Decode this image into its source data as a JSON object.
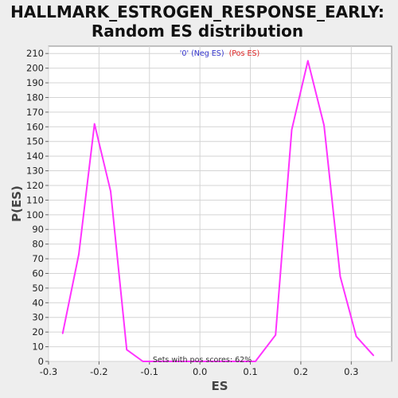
{
  "chart_data": {
    "type": "line",
    "title_line1": "HALLMARK_ESTROGEN_RESPONSE_EARLY:",
    "title_line2": "Random ES distribution",
    "xlabel": "ES",
    "ylabel": "P(ES)",
    "xlim": [
      -0.3,
      0.38
    ],
    "ylim": [
      0,
      215
    ],
    "xticks": [
      "-0.3",
      "-0.2",
      "-0.1",
      "0.0",
      "0.1",
      "0.2",
      "0.3"
    ],
    "xtick_values": [
      -0.3,
      -0.2,
      -0.1,
      0.0,
      0.1,
      0.2,
      0.3
    ],
    "yticks": [
      0,
      10,
      20,
      30,
      40,
      50,
      60,
      70,
      80,
      90,
      100,
      110,
      120,
      130,
      140,
      150,
      160,
      170,
      180,
      190,
      200,
      210
    ],
    "grid": true,
    "legend": {
      "neg_label": "'0' (Neg ES)",
      "pos_label": "(Pos ES)",
      "neg_color": "#3333cc",
      "pos_color": "#dd2222",
      "placement": "top-center"
    },
    "annotation": "Sets with pos scores: 62%",
    "series": [
      {
        "color": "#ff33ff",
        "x": [
          -0.272,
          -0.24,
          -0.209,
          -0.177,
          -0.145,
          -0.113,
          -0.082,
          -0.05,
          -0.018,
          0.014,
          0.046,
          0.078,
          0.11,
          0.15,
          0.182,
          0.214,
          0.246,
          0.278,
          0.31,
          0.344
        ],
        "values": [
          19,
          73,
          162,
          116,
          8,
          0,
          0,
          0,
          0,
          0,
          0,
          0,
          0,
          18,
          158,
          205,
          161,
          58,
          17,
          4
        ]
      }
    ]
  }
}
